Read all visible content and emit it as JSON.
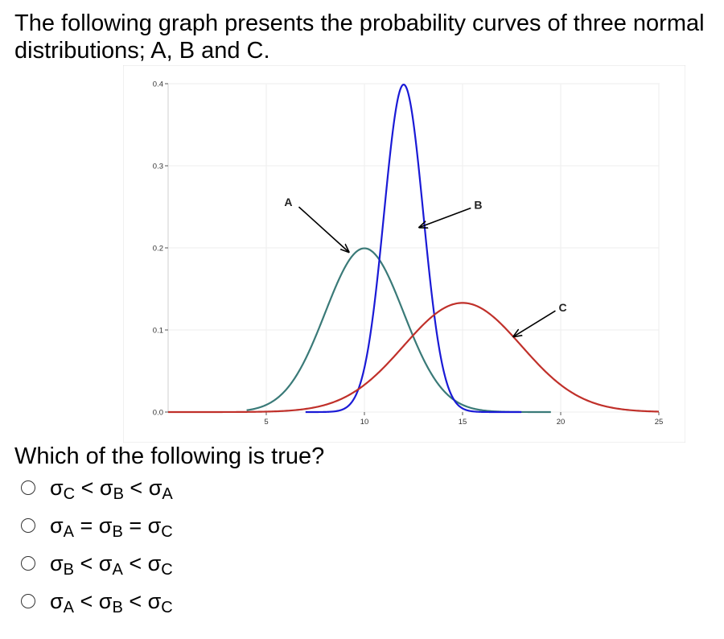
{
  "question": {
    "intro": "The following graph presents the probability curves of three normal distributions; A, B and C.",
    "prompt": "Which of the following is true?"
  },
  "options": [
    {
      "parts": [
        {
          "sym": "σ",
          "sub": "C"
        },
        {
          "op": "<"
        },
        {
          "sym": "σ",
          "sub": "B"
        },
        {
          "op": "<"
        },
        {
          "sym": "σ",
          "sub": "A"
        }
      ]
    },
    {
      "parts": [
        {
          "sym": "σ",
          "sub": "A"
        },
        {
          "op": "="
        },
        {
          "sym": "σ",
          "sub": "B"
        },
        {
          "op": "="
        },
        {
          "sym": "σ",
          "sub": "C"
        }
      ]
    },
    {
      "parts": [
        {
          "sym": "σ",
          "sub": "B"
        },
        {
          "op": "<"
        },
        {
          "sym": "σ",
          "sub": "A"
        },
        {
          "op": "<"
        },
        {
          "sym": "σ",
          "sub": "C"
        }
      ]
    },
    {
      "parts": [
        {
          "sym": "σ",
          "sub": "A"
        },
        {
          "op": "<"
        },
        {
          "sym": "σ",
          "sub": "B"
        },
        {
          "op": "<"
        },
        {
          "sym": "σ",
          "sub": "C"
        }
      ]
    }
  ],
  "chart_data": {
    "type": "line",
    "xlim": [
      0,
      25
    ],
    "ylim": [
      0,
      0.4
    ],
    "x_ticks": [
      5,
      10,
      15,
      20,
      25
    ],
    "y_ticks": [
      0.0,
      0.1,
      0.2,
      0.3,
      0.4
    ],
    "grid": true,
    "series": [
      {
        "name": "A",
        "mean": 10,
        "sd": 2,
        "x_range": [
          4,
          19.5
        ],
        "color": "#3a7a78"
      },
      {
        "name": "B",
        "mean": 12,
        "sd": 1,
        "x_range": [
          7,
          18
        ],
        "color": "#1a1ad6"
      },
      {
        "name": "C",
        "mean": 15,
        "sd": 3,
        "x_range": [
          0,
          25
        ],
        "color": "#c0302a"
      }
    ],
    "annotations": [
      {
        "text": "A",
        "target": [
          9.2,
          0.195
        ]
      },
      {
        "text": "B",
        "target": [
          12.8,
          0.225
        ]
      },
      {
        "text": "C",
        "target": [
          17.6,
          0.092
        ]
      }
    ]
  }
}
